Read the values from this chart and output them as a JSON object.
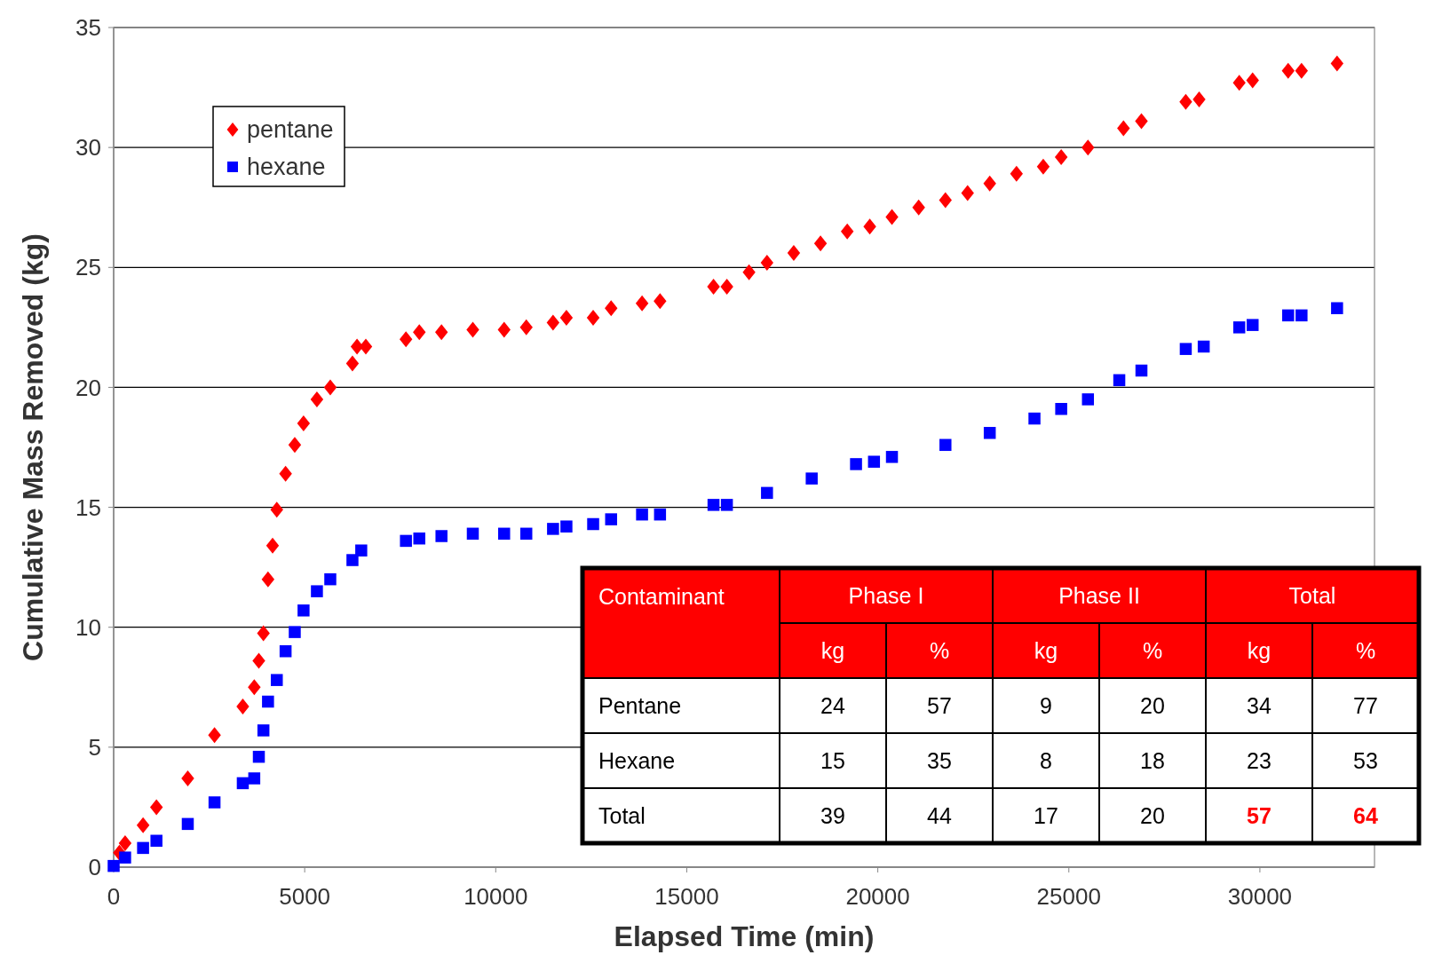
{
  "chart_data": {
    "type": "scatter",
    "xlabel": "Elapsed Time (min)",
    "ylabel": "Cumulative Mass Removed (kg)",
    "xlim": [
      0,
      33000
    ],
    "xticks": [
      0,
      5000,
      10000,
      15000,
      20000,
      25000,
      30000
    ],
    "ylim": [
      0,
      35
    ],
    "yticks": [
      0,
      5,
      10,
      15,
      20,
      25,
      30,
      35
    ],
    "grid": "y",
    "legend": "top left",
    "series": [
      {
        "name": "pentane",
        "color": "#ff0000",
        "marker": "diamond",
        "x": [
          150,
          300,
          770,
          1120,
          1940,
          2640,
          3380,
          3680,
          3800,
          3920,
          4040,
          4160,
          4270,
          4500,
          4740,
          4970,
          5320,
          5670,
          6250,
          6370,
          6600,
          7650,
          8000,
          8580,
          9400,
          10220,
          10800,
          11500,
          11850,
          12550,
          13020,
          13830,
          14300,
          15700,
          16050,
          16630,
          17100,
          17800,
          18500,
          19200,
          19790,
          20370,
          21070,
          21770,
          22350,
          22930,
          23630,
          24330,
          24800,
          25500,
          26430,
          26900,
          28060,
          28410,
          29460,
          29810,
          30740,
          31090,
          32020
        ],
        "values": [
          0.6,
          1.0,
          1.75,
          2.5,
          3.7,
          5.5,
          6.7,
          7.5,
          8.6,
          9.75,
          12,
          13.4,
          14.9,
          16.4,
          17.6,
          18.5,
          19.5,
          20.0,
          21.0,
          21.7,
          21.7,
          22.0,
          22.3,
          22.3,
          22.4,
          22.4,
          22.5,
          22.7,
          22.9,
          22.9,
          23.3,
          23.5,
          23.6,
          24.2,
          24.2,
          24.8,
          25.2,
          25.6,
          26.0,
          26.5,
          26.7,
          27.1,
          27.5,
          27.8,
          28.1,
          28.5,
          28.9,
          29.2,
          29.6,
          30.0,
          30.8,
          31.1,
          31.9,
          32.0,
          32.7,
          32.8,
          33.2,
          33.2,
          33.5
        ]
      },
      {
        "name": "hexane",
        "color": "#0000ff",
        "marker": "square",
        "x": [
          0,
          300,
          770,
          1120,
          1940,
          2640,
          3380,
          3680,
          3800,
          3920,
          4040,
          4270,
          4500,
          4740,
          4970,
          5320,
          5670,
          6250,
          6480,
          7650,
          8000,
          8580,
          9400,
          10220,
          10800,
          11500,
          11850,
          12550,
          13020,
          13830,
          14300,
          15700,
          16050,
          17100,
          18270,
          19430,
          19900,
          20370,
          21770,
          22930,
          24100,
          24800,
          25500,
          26320,
          26900,
          28060,
          28530,
          29460,
          29810,
          30740,
          31090,
          32020
        ],
        "values": [
          0.05,
          0.4,
          0.8,
          1.1,
          1.8,
          2.7,
          3.5,
          3.7,
          4.6,
          5.7,
          6.9,
          7.8,
          9.0,
          9.8,
          10.7,
          11.5,
          12.0,
          12.8,
          13.2,
          13.6,
          13.7,
          13.8,
          13.9,
          13.9,
          13.9,
          14.1,
          14.2,
          14.3,
          14.5,
          14.7,
          14.7,
          15.1,
          15.1,
          15.6,
          16.2,
          16.8,
          16.9,
          17.1,
          17.6,
          18.1,
          18.7,
          19.1,
          19.5,
          20.3,
          20.7,
          21.6,
          21.7,
          22.5,
          22.6,
          23.0,
          23.0,
          23.3
        ]
      }
    ],
    "annotations": [
      "Contaminant",
      "Phase I",
      "Phase II",
      "Total",
      "kg",
      "%",
      "kg",
      "%",
      "kg",
      "%",
      "Pentane",
      "24",
      "57",
      "9",
      "20",
      "34",
      "77",
      "Hexane",
      "15",
      "35",
      "8",
      "18",
      "23",
      "53",
      "Total",
      "39",
      "44",
      "17",
      "20",
      "57",
      "64"
    ]
  }
}
